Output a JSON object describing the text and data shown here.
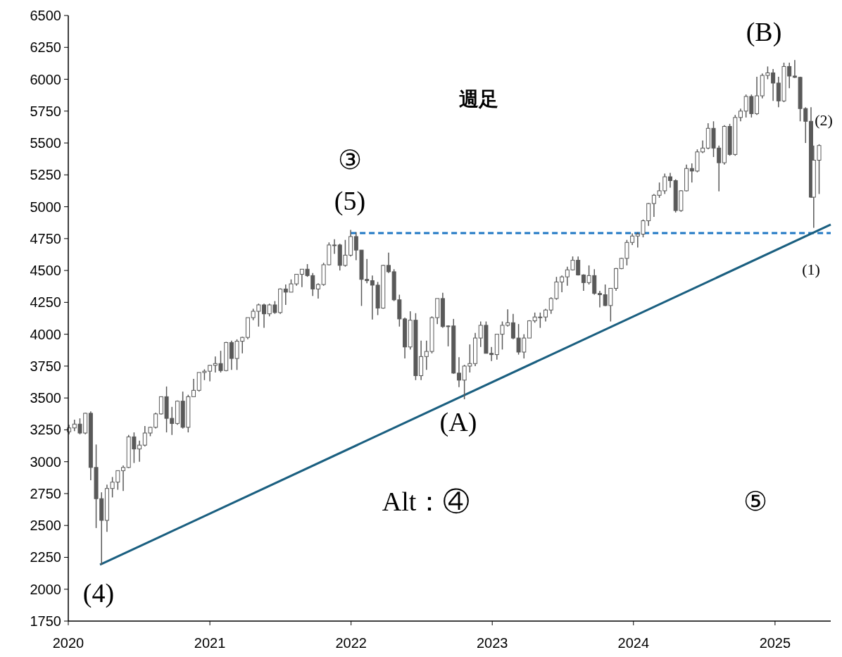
{
  "chart_data": {
    "type": "candlestick",
    "title": "週足",
    "color": "#595959",
    "xlim": [
      "2020-01-01",
      "2025-05-25"
    ],
    "ylim": [
      1750,
      6500
    ],
    "xticks": [
      {
        "value": "2020-01-01",
        "label": "2020"
      },
      {
        "value": "2021-01-01",
        "label": "2021"
      },
      {
        "value": "2022-01-01",
        "label": "2022"
      },
      {
        "value": "2023-01-01",
        "label": "2023"
      },
      {
        "value": "2024-01-01",
        "label": "2024"
      },
      {
        "value": "2025-01-01",
        "label": "2025"
      }
    ],
    "yticks": [
      1750,
      2000,
      2250,
      2500,
      2750,
      3000,
      3250,
      3500,
      3750,
      4000,
      4250,
      4500,
      4750,
      5000,
      5250,
      5500,
      5750,
      6000,
      6250,
      6500
    ],
    "grid": false,
    "annotations": [
      "③",
      "(5)",
      "(B)",
      "(2)",
      "(1)",
      "(A)",
      "(4)",
      "Alt：④",
      "⑤"
    ],
    "x": [
      "2020-01-03",
      "2020-01-17",
      "2020-01-31",
      "2020-02-14",
      "2020-02-28",
      "2020-03-13",
      "2020-03-27",
      "2020-04-10",
      "2020-04-24",
      "2020-05-08",
      "2020-05-22",
      "2020-06-05",
      "2020-06-19",
      "2020-07-03",
      "2020-07-17",
      "2020-07-31",
      "2020-08-14",
      "2020-08-28",
      "2020-09-11",
      "2020-09-25",
      "2020-10-09",
      "2020-10-23",
      "2020-11-06",
      "2020-11-20",
      "2020-12-04",
      "2020-12-18",
      "2021-01-01",
      "2021-01-15",
      "2021-01-29",
      "2021-02-12",
      "2021-02-26",
      "2021-03-12",
      "2021-03-26",
      "2021-04-09",
      "2021-04-23",
      "2021-05-07",
      "2021-05-21",
      "2021-06-04",
      "2021-06-18",
      "2021-07-02",
      "2021-07-16",
      "2021-07-30",
      "2021-08-13",
      "2021-08-27",
      "2021-09-10",
      "2021-09-24",
      "2021-10-08",
      "2021-10-22",
      "2021-11-05",
      "2021-11-19",
      "2021-12-03",
      "2021-12-17",
      "2021-12-31",
      "2022-01-14",
      "2022-01-28",
      "2022-02-11",
      "2022-02-25",
      "2022-03-11",
      "2022-03-25",
      "2022-04-08",
      "2022-04-22",
      "2022-05-06",
      "2022-05-20",
      "2022-06-03",
      "2022-06-17",
      "2022-07-01",
      "2022-07-15",
      "2022-07-29",
      "2022-08-12",
      "2022-08-26",
      "2022-09-09",
      "2022-09-23",
      "2022-10-07",
      "2022-10-21",
      "2022-11-04",
      "2022-11-18",
      "2022-12-02",
      "2022-12-16",
      "2022-12-30",
      "2023-01-13",
      "2023-01-27",
      "2023-02-10",
      "2023-02-24",
      "2023-03-10",
      "2023-03-24",
      "2023-04-07",
      "2023-04-21",
      "2023-05-05",
      "2023-05-19",
      "2023-06-02",
      "2023-06-16",
      "2023-06-30",
      "2023-07-14",
      "2023-07-28",
      "2023-08-11",
      "2023-08-25",
      "2023-09-08",
      "2023-09-22",
      "2023-10-06",
      "2023-10-20",
      "2023-11-03",
      "2023-11-17",
      "2023-12-01",
      "2023-12-15",
      "2023-12-29",
      "2024-01-12",
      "2024-01-26",
      "2024-02-09",
      "2024-02-23",
      "2024-03-08",
      "2024-03-22",
      "2024-04-05",
      "2024-04-19",
      "2024-05-03",
      "2024-05-17",
      "2024-05-31",
      "2024-06-14",
      "2024-06-28",
      "2024-07-12",
      "2024-07-26",
      "2024-08-09",
      "2024-08-23",
      "2024-09-06",
      "2024-09-20",
      "2024-10-04",
      "2024-10-18",
      "2024-11-01",
      "2024-11-15",
      "2024-11-29",
      "2024-12-13",
      "2024-12-27",
      "2025-01-10",
      "2025-01-24",
      "2025-02-07",
      "2025-02-21",
      "2025-03-07",
      "2025-03-21",
      "2025-04-04",
      "2025-04-11",
      "2025-04-25"
    ],
    "ohlc": [
      [
        3235,
        3290,
        3215,
        3265
      ],
      [
        3265,
        3330,
        3240,
        3295
      ],
      [
        3295,
        3340,
        3215,
        3225
      ],
      [
        3225,
        3385,
        3215,
        3380
      ],
      [
        3380,
        3395,
        2855,
        2955
      ],
      [
        2955,
        3135,
        2480,
        2710
      ],
      [
        2710,
        2760,
        2192,
        2540
      ],
      [
        2540,
        2820,
        2450,
        2790
      ],
      [
        2790,
        2880,
        2720,
        2840
      ],
      [
        2840,
        2930,
        2780,
        2930
      ],
      [
        2930,
        2970,
        2770,
        2955
      ],
      [
        2955,
        3210,
        2950,
        3195
      ],
      [
        3195,
        3230,
        2990,
        3100
      ],
      [
        3100,
        3165,
        3000,
        3130
      ],
      [
        3130,
        3280,
        3120,
        3225
      ],
      [
        3225,
        3275,
        3200,
        3270
      ],
      [
        3270,
        3385,
        3260,
        3375
      ],
      [
        3375,
        3510,
        3370,
        3510
      ],
      [
        3510,
        3590,
        3230,
        3340
      ],
      [
        3340,
        3430,
        3210,
        3300
      ],
      [
        3300,
        3480,
        3290,
        3475
      ],
      [
        3475,
        3550,
        3260,
        3270
      ],
      [
        3270,
        3525,
        3230,
        3510
      ],
      [
        3510,
        3650,
        3510,
        3560
      ],
      [
        3560,
        3700,
        3550,
        3700
      ],
      [
        3700,
        3725,
        3640,
        3710
      ],
      [
        3710,
        3760,
        3630,
        3756
      ],
      [
        3756,
        3825,
        3700,
        3770
      ],
      [
        3770,
        3870,
        3700,
        3715
      ],
      [
        3715,
        3940,
        3710,
        3935
      ],
      [
        3935,
        3950,
        3720,
        3810
      ],
      [
        3810,
        3960,
        3720,
        3945
      ],
      [
        3945,
        3980,
        3850,
        3975
      ],
      [
        3975,
        4130,
        3960,
        4130
      ],
      [
        4130,
        4200,
        4110,
        4180
      ],
      [
        4180,
        4240,
        4060,
        4230
      ],
      [
        4230,
        4240,
        4050,
        4160
      ],
      [
        4160,
        4240,
        4140,
        4230
      ],
      [
        4230,
        4260,
        4160,
        4170
      ],
      [
        4170,
        4360,
        4160,
        4355
      ],
      [
        4355,
        4390,
        4230,
        4330
      ],
      [
        4330,
        4430,
        4330,
        4395
      ],
      [
        4395,
        4470,
        4380,
        4470
      ],
      [
        4470,
        4510,
        4370,
        4510
      ],
      [
        4510,
        4550,
        4450,
        4460
      ],
      [
        4460,
        4480,
        4300,
        4355
      ],
      [
        4355,
        4400,
        4280,
        4390
      ],
      [
        4390,
        4560,
        4380,
        4545
      ],
      [
        4545,
        4720,
        4540,
        4700
      ],
      [
        4700,
        4745,
        4630,
        4700
      ],
      [
        4700,
        4710,
        4500,
        4540
      ],
      [
        4540,
        4740,
        4530,
        4620
      ],
      [
        4620,
        4818,
        4610,
        4766
      ],
      [
        4766,
        4800,
        4580,
        4660
      ],
      [
        4660,
        4660,
        4222,
        4430
      ],
      [
        4430,
        4590,
        4400,
        4420
      ],
      [
        4420,
        4460,
        4115,
        4385
      ],
      [
        4385,
        4410,
        4150,
        4205
      ],
      [
        4205,
        4545,
        4200,
        4540
      ],
      [
        4540,
        4640,
        4480,
        4490
      ],
      [
        4490,
        4510,
        4260,
        4270
      ],
      [
        4270,
        4310,
        4060,
        4120
      ],
      [
        4120,
        4130,
        3810,
        3900
      ],
      [
        3900,
        4180,
        3880,
        4110
      ],
      [
        4110,
        4165,
        3640,
        3675
      ],
      [
        3675,
        3950,
        3640,
        3825
      ],
      [
        3825,
        3950,
        3720,
        3865
      ],
      [
        3865,
        4140,
        3850,
        4130
      ],
      [
        4130,
        4280,
        4080,
        4280
      ],
      [
        4280,
        4325,
        4050,
        4060
      ],
      [
        4060,
        4070,
        3905,
        4065
      ],
      [
        4065,
        4120,
        3690,
        3695
      ],
      [
        3695,
        3820,
        3585,
        3640
      ],
      [
        3640,
        3760,
        3490,
        3750
      ],
      [
        3750,
        3920,
        3700,
        3770
      ],
      [
        3770,
        4010,
        3750,
        3970
      ],
      [
        3970,
        4100,
        3900,
        4070
      ],
      [
        4070,
        4100,
        3850,
        3850
      ],
      [
        3850,
        3900,
        3790,
        3840
      ],
      [
        3840,
        4000,
        3800,
        4000
      ],
      [
        4000,
        4100,
        3880,
        4070
      ],
      [
        4070,
        4195,
        4060,
        4090
      ],
      [
        4090,
        4160,
        3960,
        3970
      ],
      [
        3970,
        4080,
        3840,
        3860
      ],
      [
        3860,
        4000,
        3810,
        3970
      ],
      [
        3970,
        4110,
        3970,
        4105
      ],
      [
        4105,
        4170,
        4090,
        4135
      ],
      [
        4135,
        4170,
        4050,
        4135
      ],
      [
        4135,
        4200,
        4100,
        4190
      ],
      [
        4190,
        4290,
        4160,
        4280
      ],
      [
        4280,
        4450,
        4270,
        4410
      ],
      [
        4410,
        4460,
        4330,
        4450
      ],
      [
        4450,
        4530,
        4380,
        4505
      ],
      [
        4505,
        4610,
        4500,
        4580
      ],
      [
        4580,
        4610,
        4460,
        4465
      ],
      [
        4465,
        4470,
        4340,
        4405
      ],
      [
        4405,
        4540,
        4390,
        4460
      ],
      [
        4460,
        4510,
        4310,
        4320
      ],
      [
        4320,
        4340,
        4210,
        4310
      ],
      [
        4310,
        4390,
        4220,
        4225
      ],
      [
        4225,
        4360,
        4100,
        4360
      ],
      [
        4360,
        4520,
        4340,
        4515
      ],
      [
        4515,
        4600,
        4510,
        4595
      ],
      [
        4595,
        4740,
        4540,
        4720
      ],
      [
        4720,
        4790,
        4700,
        4770
      ],
      [
        4770,
        4800,
        4680,
        4785
      ],
      [
        4785,
        4900,
        4760,
        4890
      ],
      [
        4890,
        5030,
        4850,
        5025
      ],
      [
        5025,
        5100,
        4920,
        5090
      ],
      [
        5090,
        5190,
        5070,
        5125
      ],
      [
        5125,
        5260,
        5100,
        5235
      ],
      [
        5235,
        5265,
        5150,
        5205
      ],
      [
        5205,
        5215,
        4955,
        4970
      ],
      [
        4970,
        5130,
        4960,
        5125
      ],
      [
        5125,
        5330,
        5120,
        5300
      ],
      [
        5300,
        5340,
        5190,
        5280
      ],
      [
        5280,
        5450,
        5270,
        5430
      ],
      [
        5430,
        5520,
        5420,
        5460
      ],
      [
        5460,
        5655,
        5450,
        5615
      ],
      [
        5615,
        5670,
        5390,
        5460
      ],
      [
        5460,
        5480,
        5120,
        5345
      ],
      [
        5345,
        5640,
        5330,
        5630
      ],
      [
        5630,
        5650,
        5400,
        5410
      ],
      [
        5410,
        5720,
        5400,
        5700
      ],
      [
        5700,
        5770,
        5670,
        5750
      ],
      [
        5750,
        5880,
        5700,
        5865
      ],
      [
        5865,
        5880,
        5700,
        5730
      ],
      [
        5730,
        6020,
        5720,
        5870
      ],
      [
        5870,
        6045,
        5850,
        6030
      ],
      [
        6030,
        6100,
        6000,
        6050
      ],
      [
        6050,
        6080,
        5830,
        5970
      ],
      [
        5970,
        6020,
        5780,
        5830
      ],
      [
        5830,
        6130,
        5820,
        6100
      ],
      [
        6100,
        6130,
        5930,
        6025
      ],
      [
        6025,
        6150,
        6010,
        6015
      ],
      [
        6015,
        6020,
        5670,
        5770
      ],
      [
        5770,
        5780,
        5500,
        5670
      ],
      [
        5670,
        5780,
        5070,
        5075
      ],
      [
        5075,
        5480,
        4835,
        5365
      ],
      [
        5365,
        5490,
        5100,
        5480
      ]
    ],
    "series": [
      {
        "type": "line",
        "color": "#1f77c4",
        "line_style": "dashed",
        "x": [
          "2021-12-31",
          "2025-05-25"
        ],
        "values": [
          4793,
          4793
        ]
      },
      {
        "type": "line",
        "color": "#1a5f80",
        "line_style": "solid",
        "x": [
          "2020-03-23",
          "2025-05-25"
        ],
        "values": [
          2192,
          4860
        ]
      }
    ]
  }
}
